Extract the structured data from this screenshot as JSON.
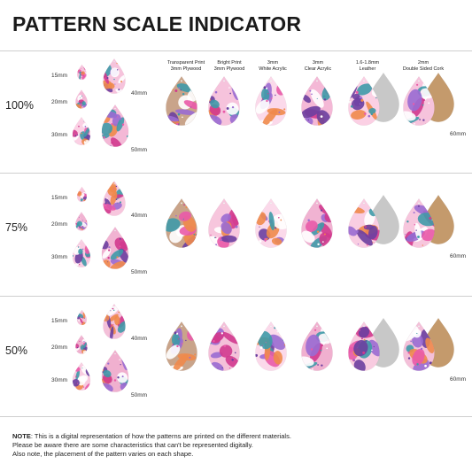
{
  "title": "PATTERN SCALE INDICATOR",
  "materials": [
    {
      "line1": "Transparent Print",
      "line2": "3mm Plywood"
    },
    {
      "line1": "Bright Print",
      "line2": "3mm Plywood"
    },
    {
      "line1": "3mm",
      "line2": "White Acrylic"
    },
    {
      "line1": "3mm",
      "line2": "Clear Acrylic"
    },
    {
      "line1": "1.6-1.8mm",
      "line2": "Leather"
    },
    {
      "line1": "2mm",
      "line2": "Double Sided Cork"
    }
  ],
  "sections": [
    {
      "scale": "100%",
      "sizes": {
        "s15": "15mm",
        "s20": "20mm",
        "s30": "30mm",
        "s40": "40mm",
        "s50": "50mm",
        "s60": "60mm"
      }
    },
    {
      "scale": "75%",
      "sizes": {
        "s15": "15mm",
        "s20": "20mm",
        "s30": "30mm",
        "s40": "40mm",
        "s50": "50mm",
        "s60": "60mm"
      }
    },
    {
      "scale": "50%",
      "sizes": {
        "s15": "15mm",
        "s20": "20mm",
        "s30": "30mm",
        "s40": "40mm",
        "s50": "50mm",
        "s60": "60mm"
      }
    }
  ],
  "note": {
    "label": "NOTE",
    "line1": ": This is a digital representation of how the patterns are printed on the different materials.",
    "line2": "Please be aware there are some characteristics that can't be represented digitally.",
    "line3": "Also note, the placement of the pattern varies on each shape."
  },
  "colors": {
    "pink": "#f3b6d2",
    "magenta": "#d13a8e",
    "purple": "#6b3fa0",
    "teal": "#3f9aa8",
    "orange": "#f08a4b",
    "plywood": "#c9a48a",
    "leather": "#c8c8c8",
    "cork": "#c49a6c"
  }
}
